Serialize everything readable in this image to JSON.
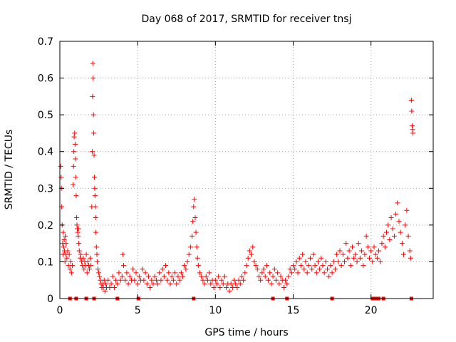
{
  "chart_data": {
    "type": "scatter",
    "title": "Day 068 of 2017, SRMTID for receiver tnsj",
    "xlabel": "GPS time / hours",
    "ylabel": "SRMTID / TECUs",
    "xlim": [
      0,
      24
    ],
    "ylim": [
      0,
      0.7
    ],
    "xticks": [
      0,
      5,
      10,
      15,
      20
    ],
    "yticks": [
      0,
      0.1,
      0.2,
      0.3,
      0.4,
      0.5,
      0.6,
      0.7
    ],
    "xtick_labels": [
      "0",
      "5",
      "10",
      "15",
      "20"
    ],
    "ytick_labels": [
      "0",
      "0.1",
      "0.2",
      "0.3",
      "0.4",
      "0.5",
      "0.6",
      "0.7"
    ],
    "grid": true,
    "marker": "+",
    "color": "#ff0000",
    "series": [
      {
        "name": "SRMTID",
        "points": [
          [
            0.05,
            0.36
          ],
          [
            0.08,
            0.33
          ],
          [
            0.1,
            0.3
          ],
          [
            0.12,
            0.25
          ],
          [
            0.15,
            0.2
          ],
          [
            0.18,
            0.15
          ],
          [
            0.2,
            0.12
          ],
          [
            0.22,
            0.18
          ],
          [
            0.25,
            0.14
          ],
          [
            0.28,
            0.16
          ],
          [
            0.3,
            0.13
          ],
          [
            0.33,
            0.1
          ],
          [
            0.35,
            0.17
          ],
          [
            0.38,
            0.12
          ],
          [
            0.4,
            0.15
          ],
          [
            0.45,
            0.11
          ],
          [
            0.5,
            0.13
          ],
          [
            0.55,
            0.09
          ],
          [
            0.6,
            0.12
          ],
          [
            0.65,
            0.08
          ],
          [
            0.7,
            0.1
          ],
          [
            0.75,
            0.07
          ],
          [
            0.8,
            0.09
          ],
          [
            0.85,
            0.31
          ],
          [
            0.88,
            0.36
          ],
          [
            0.9,
            0.4
          ],
          [
            0.92,
            0.44
          ],
          [
            0.95,
            0.45
          ],
          [
            0.98,
            0.42
          ],
          [
            1.0,
            0.38
          ],
          [
            1.02,
            0.33
          ],
          [
            1.05,
            0.28
          ],
          [
            1.08,
            0.22
          ],
          [
            1.1,
            0.2
          ],
          [
            1.12,
            0.19
          ],
          [
            1.15,
            0.18
          ],
          [
            1.18,
            0.17
          ],
          [
            1.2,
            0.19
          ],
          [
            1.22,
            0.15
          ],
          [
            1.25,
            0.13
          ],
          [
            1.3,
            0.11
          ],
          [
            1.35,
            0.12
          ],
          [
            1.4,
            0.1
          ],
          [
            1.45,
            0.09
          ],
          [
            1.5,
            0.11
          ],
          [
            1.55,
            0.08
          ],
          [
            1.6,
            0.1
          ],
          [
            1.65,
            0.09
          ],
          [
            1.7,
            0.12
          ],
          [
            1.75,
            0.07
          ],
          [
            1.8,
            0.1
          ],
          [
            1.85,
            0.09
          ],
          [
            1.9,
            0.08
          ],
          [
            1.95,
            0.11
          ],
          [
            2.0,
            0.09
          ],
          [
            2.05,
            0.25
          ],
          [
            2.08,
            0.4
          ],
          [
            2.1,
            0.55
          ],
          [
            2.12,
            0.64
          ],
          [
            2.14,
            0.6
          ],
          [
            2.16,
            0.5
          ],
          [
            2.18,
            0.45
          ],
          [
            2.2,
            0.39
          ],
          [
            2.22,
            0.33
          ],
          [
            2.24,
            0.3
          ],
          [
            2.26,
            0.28
          ],
          [
            2.28,
            0.25
          ],
          [
            2.3,
            0.22
          ],
          [
            2.32,
            0.18
          ],
          [
            2.35,
            0.14
          ],
          [
            2.38,
            0.12
          ],
          [
            2.4,
            0.1
          ],
          [
            2.45,
            0.08
          ],
          [
            2.5,
            0.07
          ],
          [
            2.55,
            0.06
          ],
          [
            2.6,
            0.05
          ],
          [
            2.65,
            0.04
          ],
          [
            2.7,
            0.03
          ],
          [
            2.75,
            0.04
          ],
          [
            2.8,
            0.03
          ],
          [
            2.85,
            0.05
          ],
          [
            2.9,
            0.02
          ],
          [
            2.95,
            0.04
          ],
          [
            3.0,
            0.03
          ],
          [
            3.1,
            0.05
          ],
          [
            3.2,
            0.03
          ],
          [
            3.3,
            0.04
          ],
          [
            3.4,
            0.06
          ],
          [
            3.5,
            0.03
          ],
          [
            3.6,
            0.05
          ],
          [
            3.7,
            0.04
          ],
          [
            3.8,
            0.07
          ],
          [
            3.9,
            0.05
          ],
          [
            4.0,
            0.06
          ],
          [
            4.05,
            0.12
          ],
          [
            4.1,
            0.09
          ],
          [
            4.2,
            0.05
          ],
          [
            4.3,
            0.07
          ],
          [
            4.4,
            0.04
          ],
          [
            4.5,
            0.06
          ],
          [
            4.6,
            0.05
          ],
          [
            4.7,
            0.08
          ],
          [
            4.8,
            0.05
          ],
          [
            4.9,
            0.07
          ],
          [
            5.0,
            0.04
          ],
          [
            5.1,
            0.06
          ],
          [
            5.2,
            0.05
          ],
          [
            5.3,
            0.08
          ],
          [
            5.4,
            0.05
          ],
          [
            5.5,
            0.07
          ],
          [
            5.6,
            0.04
          ],
          [
            5.7,
            0.06
          ],
          [
            5.8,
            0.03
          ],
          [
            5.9,
            0.05
          ],
          [
            6.0,
            0.04
          ],
          [
            6.1,
            0.06
          ],
          [
            6.2,
            0.05
          ],
          [
            6.3,
            0.04
          ],
          [
            6.4,
            0.07
          ],
          [
            6.5,
            0.05
          ],
          [
            6.6,
            0.08
          ],
          [
            6.7,
            0.06
          ],
          [
            6.8,
            0.09
          ],
          [
            6.9,
            0.05
          ],
          [
            7.0,
            0.07
          ],
          [
            7.1,
            0.04
          ],
          [
            7.2,
            0.06
          ],
          [
            7.3,
            0.05
          ],
          [
            7.4,
            0.07
          ],
          [
            7.5,
            0.04
          ],
          [
            7.6,
            0.06
          ],
          [
            7.7,
            0.05
          ],
          [
            7.8,
            0.07
          ],
          [
            7.9,
            0.06
          ],
          [
            8.0,
            0.09
          ],
          [
            8.1,
            0.08
          ],
          [
            8.2,
            0.1
          ],
          [
            8.3,
            0.12
          ],
          [
            8.4,
            0.14
          ],
          [
            8.5,
            0.17
          ],
          [
            8.55,
            0.21
          ],
          [
            8.6,
            0.25
          ],
          [
            8.65,
            0.27
          ],
          [
            8.7,
            0.22
          ],
          [
            8.75,
            0.18
          ],
          [
            8.8,
            0.14
          ],
          [
            8.85,
            0.11
          ],
          [
            8.9,
            0.09
          ],
          [
            9.0,
            0.07
          ],
          [
            9.1,
            0.06
          ],
          [
            9.2,
            0.05
          ],
          [
            9.3,
            0.04
          ],
          [
            9.4,
            0.06
          ],
          [
            9.5,
            0.05
          ],
          [
            9.6,
            0.07
          ],
          [
            9.7,
            0.04
          ],
          [
            9.8,
            0.05
          ],
          [
            9.9,
            0.03
          ],
          [
            10.0,
            0.05
          ],
          [
            10.1,
            0.04
          ],
          [
            10.2,
            0.06
          ],
          [
            10.3,
            0.03
          ],
          [
            10.4,
            0.05
          ],
          [
            10.5,
            0.04
          ],
          [
            10.6,
            0.06
          ],
          [
            10.7,
            0.03
          ],
          [
            10.8,
            0.04
          ],
          [
            10.9,
            0.02
          ],
          [
            11.0,
            0.04
          ],
          [
            11.1,
            0.03
          ],
          [
            11.2,
            0.05
          ],
          [
            11.3,
            0.04
          ],
          [
            11.4,
            0.03
          ],
          [
            11.5,
            0.05
          ],
          [
            11.6,
            0.04
          ],
          [
            11.7,
            0.06
          ],
          [
            11.8,
            0.05
          ],
          [
            11.9,
            0.07
          ],
          [
            12.0,
            0.09
          ],
          [
            12.1,
            0.11
          ],
          [
            12.2,
            0.13
          ],
          [
            12.3,
            0.12
          ],
          [
            12.4,
            0.14
          ],
          [
            12.5,
            0.1
          ],
          [
            12.6,
            0.09
          ],
          [
            12.7,
            0.08
          ],
          [
            12.8,
            0.06
          ],
          [
            12.9,
            0.05
          ],
          [
            13.0,
            0.07
          ],
          [
            13.1,
            0.08
          ],
          [
            13.2,
            0.06
          ],
          [
            13.3,
            0.09
          ],
          [
            13.4,
            0.05
          ],
          [
            13.5,
            0.07
          ],
          [
            13.6,
            0.04
          ],
          [
            13.7,
            0.06
          ],
          [
            13.8,
            0.08
          ],
          [
            13.9,
            0.05
          ],
          [
            14.0,
            0.07
          ],
          [
            14.1,
            0.04
          ],
          [
            14.2,
            0.06
          ],
          [
            14.3,
            0.05
          ],
          [
            14.4,
            0.03
          ],
          [
            14.5,
            0.05
          ],
          [
            14.6,
            0.04
          ],
          [
            14.7,
            0.06
          ],
          [
            14.8,
            0.08
          ],
          [
            14.9,
            0.07
          ],
          [
            15.0,
            0.09
          ],
          [
            15.1,
            0.08
          ],
          [
            15.2,
            0.1
          ],
          [
            15.3,
            0.07
          ],
          [
            15.4,
            0.11
          ],
          [
            15.5,
            0.09
          ],
          [
            15.6,
            0.12
          ],
          [
            15.7,
            0.08
          ],
          [
            15.8,
            0.1
          ],
          [
            15.9,
            0.07
          ],
          [
            16.0,
            0.09
          ],
          [
            16.1,
            0.11
          ],
          [
            16.2,
            0.08
          ],
          [
            16.3,
            0.12
          ],
          [
            16.4,
            0.09
          ],
          [
            16.5,
            0.07
          ],
          [
            16.6,
            0.1
          ],
          [
            16.7,
            0.08
          ],
          [
            16.8,
            0.11
          ],
          [
            16.9,
            0.09
          ],
          [
            17.0,
            0.07
          ],
          [
            17.1,
            0.1
          ],
          [
            17.2,
            0.08
          ],
          [
            17.3,
            0.06
          ],
          [
            17.4,
            0.09
          ],
          [
            17.5,
            0.07
          ],
          [
            17.6,
            0.1
          ],
          [
            17.7,
            0.08
          ],
          [
            17.8,
            0.12
          ],
          [
            17.9,
            0.1
          ],
          [
            18.0,
            0.13
          ],
          [
            18.1,
            0.09
          ],
          [
            18.2,
            0.12
          ],
          [
            18.3,
            0.1
          ],
          [
            18.4,
            0.15
          ],
          [
            18.5,
            0.11
          ],
          [
            18.6,
            0.13
          ],
          [
            18.7,
            0.09
          ],
          [
            18.8,
            0.14
          ],
          [
            18.9,
            0.11
          ],
          [
            19.0,
            0.12
          ],
          [
            19.1,
            0.1
          ],
          [
            19.2,
            0.15
          ],
          [
            19.3,
            0.11
          ],
          [
            19.4,
            0.13
          ],
          [
            19.5,
            0.09
          ],
          [
            19.6,
            0.12
          ],
          [
            19.7,
            0.17
          ],
          [
            19.8,
            0.14
          ],
          [
            19.9,
            0.11
          ],
          [
            20.0,
            0.13
          ],
          [
            20.1,
            0.1
          ],
          [
            20.2,
            0.14
          ],
          [
            20.3,
            0.12
          ],
          [
            20.4,
            0.11
          ],
          [
            20.5,
            0.13
          ],
          [
            20.6,
            0.1
          ],
          [
            20.7,
            0.15
          ],
          [
            20.8,
            0.17
          ],
          [
            20.9,
            0.14
          ],
          [
            21.0,
            0.18
          ],
          [
            21.1,
            0.2
          ],
          [
            21.2,
            0.16
          ],
          [
            21.3,
            0.22
          ],
          [
            21.4,
            0.19
          ],
          [
            21.5,
            0.17
          ],
          [
            21.6,
            0.23
          ],
          [
            21.7,
            0.26
          ],
          [
            21.8,
            0.21
          ],
          [
            21.9,
            0.18
          ],
          [
            22.0,
            0.15
          ],
          [
            22.1,
            0.12
          ],
          [
            22.2,
            0.2
          ],
          [
            22.3,
            0.24
          ],
          [
            22.4,
            0.17
          ],
          [
            22.5,
            0.13
          ],
          [
            22.55,
            0.11
          ],
          [
            22.6,
            0.54
          ],
          [
            22.62,
            0.51
          ],
          [
            22.65,
            0.47
          ],
          [
            22.68,
            0.46
          ],
          [
            22.7,
            0.45
          ]
        ]
      }
    ],
    "gap_markers_x": [
      0.65,
      1.05,
      1.7,
      2.2,
      3.7,
      5.05,
      8.6,
      13.7,
      14.6,
      17.5,
      20.1,
      20.3,
      20.5,
      20.8,
      22.6
    ]
  }
}
